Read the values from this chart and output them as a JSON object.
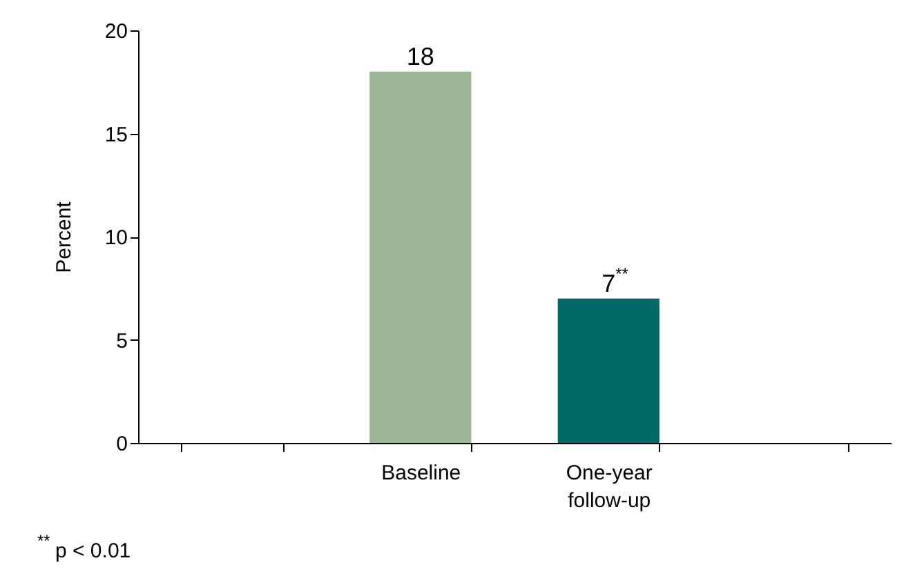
{
  "chart_data": {
    "type": "bar",
    "categories": [
      null,
      "Baseline",
      "One-year follow-up",
      null
    ],
    "values": [
      null,
      18,
      7,
      null
    ],
    "colors": [
      null,
      "#9bb595",
      "#006966",
      null
    ],
    "value_labels": [
      null,
      "18",
      "7$^{**}$",
      null
    ],
    "ylabel": "Percent",
    "ylim": [
      0,
      20
    ],
    "yticks": [
      0,
      5,
      10,
      15,
      20
    ],
    "grid": false,
    "annotations": [
      "$^{**}$ p < 0.01"
    ]
  }
}
